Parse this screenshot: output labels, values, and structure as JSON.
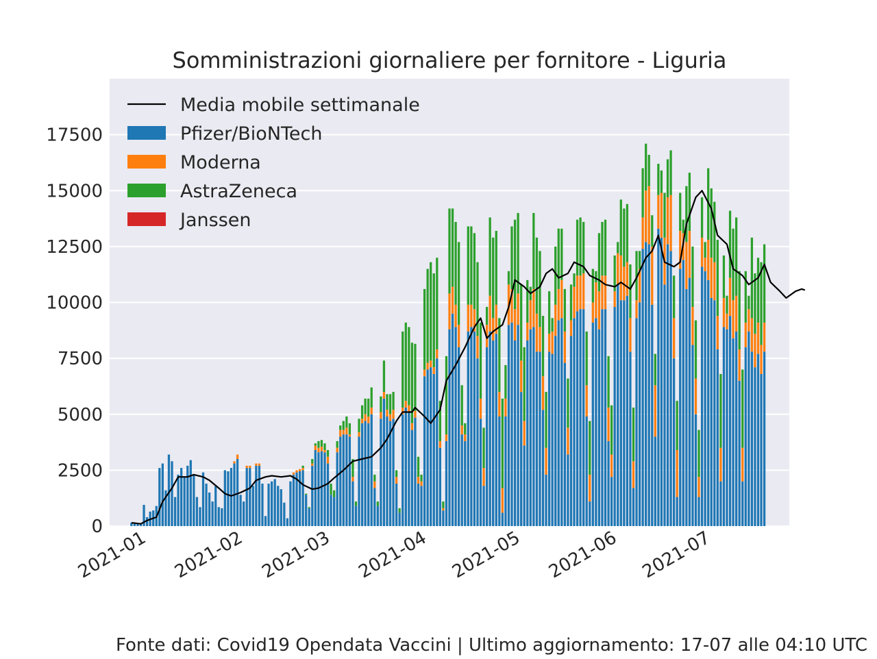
{
  "chart_data": {
    "type": "bar",
    "stacked": true,
    "title": "Somministrazioni giornaliere per fornitore - Liguria",
    "xlabel": "",
    "ylabel": "",
    "ylim": [
      0,
      20000
    ],
    "yticks": [
      0,
      2500,
      5000,
      7500,
      10000,
      12500,
      15000,
      17500
    ],
    "xlim": [
      "2020-12-20",
      "2021-07-26"
    ],
    "xticks": [
      {
        "date": "2021-01-01",
        "label": "2021-01"
      },
      {
        "date": "2021-02-01",
        "label": "2021-02"
      },
      {
        "date": "2021-03-01",
        "label": "2021-03"
      },
      {
        "date": "2021-04-01",
        "label": "2021-04"
      },
      {
        "date": "2021-05-01",
        "label": "2021-05"
      },
      {
        "date": "2021-06-01",
        "label": "2021-06"
      },
      {
        "date": "2021-07-01",
        "label": "2021-07"
      }
    ],
    "grid": true,
    "legend_position": "top-left",
    "date_start": "2020-12-27",
    "series": [
      {
        "name": "Pfizer/BioNTech",
        "color": "#1f77b4",
        "values": [
          150,
          100,
          100,
          100,
          950,
          400,
          650,
          700,
          900,
          2600,
          2800,
          1600,
          3200,
          2900,
          1300,
          2300,
          2600,
          2200,
          2700,
          2950,
          2300,
          1300,
          850,
          2400,
          1900,
          1500,
          1100,
          1800,
          850,
          800,
          2500,
          2450,
          2600,
          2800,
          3000,
          1400,
          1100,
          2600,
          2600,
          1800,
          2700,
          2700,
          1900,
          450,
          1900,
          2000,
          2100,
          1800,
          1650,
          1050,
          350,
          2000,
          2300,
          2400,
          2450,
          2500,
          1400,
          800,
          2700,
          3400,
          3300,
          3350,
          3300,
          2800,
          1400,
          1300,
          3300,
          4000,
          4100,
          4100,
          4000,
          2000,
          900,
          4000,
          4600,
          4700,
          4600,
          5000,
          1700,
          900,
          4800,
          5700,
          4900,
          4700,
          4800,
          1900,
          600,
          5000,
          5300,
          5100,
          4300,
          4850,
          1900,
          1800,
          6700,
          7000,
          7100,
          6800,
          7500,
          3500,
          700,
          3800,
          8800,
          9500,
          8900,
          8000,
          4100,
          3800,
          8700,
          8900,
          8700,
          7500,
          4800,
          1800,
          8000,
          8700,
          8300,
          8600,
          4900,
          600,
          4900,
          9000,
          9100,
          8300,
          9000,
          6000,
          3600,
          8300,
          8800,
          8900,
          7800,
          7800,
          5200,
          2300,
          7800,
          7700,
          8500,
          9200,
          9300,
          7300,
          3200,
          8500,
          9300,
          9600,
          9700,
          9700,
          4900,
          1100,
          9100,
          9300,
          8800,
          9700,
          9700,
          3800,
          2200,
          9800,
          10800,
          10100,
          10100,
          10300,
          7800,
          1700,
          9300,
          10000,
          12400,
          12700,
          12600,
          9900,
          4000,
          13300,
          12900,
          10800,
          12600,
          12300,
          7500,
          1300,
          11500,
          11900,
          10600,
          11100,
          8100,
          5000,
          1300,
          11600,
          11400,
          11000,
          10200,
          10100,
          7900,
          2000,
          8900,
          8800,
          9400,
          8400,
          8700,
          6500,
          2000,
          8000,
          8700,
          7800,
          7100,
          7700,
          6800,
          7800
        ]
      },
      {
        "name": "Moderna",
        "color": "#ff7f0e",
        "values": [
          0,
          0,
          0,
          0,
          0,
          0,
          0,
          0,
          0,
          0,
          0,
          0,
          0,
          0,
          0,
          0,
          0,
          0,
          0,
          0,
          0,
          0,
          0,
          0,
          0,
          0,
          0,
          0,
          0,
          0,
          0,
          0,
          0,
          100,
          200,
          0,
          0,
          100,
          100,
          0,
          100,
          100,
          0,
          0,
          0,
          0,
          0,
          0,
          0,
          0,
          0,
          0,
          100,
          100,
          100,
          100,
          0,
          0,
          100,
          200,
          200,
          200,
          100,
          300,
          0,
          0,
          200,
          300,
          200,
          300,
          100,
          200,
          0,
          200,
          200,
          300,
          300,
          300,
          300,
          0,
          300,
          300,
          300,
          300,
          400,
          300,
          0,
          300,
          300,
          300,
          300,
          300,
          300,
          200,
          300,
          300,
          300,
          300,
          400,
          300,
          100,
          300,
          1600,
          1200,
          1000,
          1000,
          400,
          300,
          1200,
          1000,
          1000,
          1000,
          900,
          800,
          1000,
          1600,
          1000,
          1300,
          1100,
          1100,
          800,
          1800,
          1500,
          1400,
          1400,
          1400,
          1100,
          800,
          1300,
          1700,
          1700,
          1100,
          1500,
          1200,
          800,
          1000,
          1400,
          1400,
          1700,
          1400,
          1200,
          700,
          1400,
          1600,
          1500,
          1600,
          1400,
          1200,
          900,
          1600,
          1700,
          1500,
          1500,
          1500,
          1000,
          700,
          1400,
          2000,
          1500,
          1500,
          1500,
          1200,
          800,
          1500,
          1400,
          2300,
          2600,
          2600,
          2300,
          1500,
          2000,
          2100,
          2100,
          2500,
          1800,
          2100,
          1700,
          1200,
          2100,
          2100,
          1700,
          1600,
          900,
          1300,
          600,
          1800,
          1800,
          1700,
          1500,
          1500,
          1300,
          700,
          1700,
          1700,
          1600,
          1400,
          1500,
          1100,
          1000,
          1500,
          1500,
          1400,
          1300,
          1300,
          900,
          800
        ]
      },
      {
        "name": "AstraZeneca",
        "color": "#2ca02c",
        "values": [
          0,
          0,
          0,
          0,
          0,
          0,
          0,
          0,
          0,
          0,
          0,
          0,
          0,
          0,
          0,
          0,
          0,
          0,
          0,
          0,
          0,
          0,
          0,
          0,
          0,
          0,
          0,
          0,
          0,
          0,
          0,
          0,
          0,
          0,
          0,
          0,
          0,
          0,
          0,
          0,
          0,
          0,
          0,
          0,
          0,
          0,
          0,
          0,
          0,
          0,
          0,
          0,
          0,
          0,
          0,
          100,
          50,
          50,
          200,
          100,
          300,
          300,
          300,
          300,
          500,
          300,
          300,
          200,
          400,
          500,
          500,
          800,
          200,
          600,
          600,
          700,
          800,
          900,
          300,
          200,
          700,
          1400,
          700,
          900,
          800,
          300,
          200,
          3400,
          3500,
          3500,
          3600,
          3000,
          900,
          300,
          3600,
          4200,
          4400,
          4200,
          4100,
          1800,
          300,
          3500,
          3800,
          3500,
          3700,
          3700,
          1800,
          500,
          3500,
          3500,
          3400,
          3300,
          3400,
          1800,
          800,
          3500,
          3600,
          3300,
          3300,
          4000,
          1500,
          600,
          2800,
          4000,
          3600,
          3400,
          3300,
          1900,
          600,
          3400,
          3400,
          3400,
          2700,
          2500,
          1900,
          600,
          2600,
          2700,
          2300,
          1900,
          2200,
          1600,
          600,
          2500,
          2600,
          2300,
          2400,
          2400,
          1500,
          500,
          2600,
          2400,
          2500,
          2300,
          2200,
          1600,
          500,
          2500,
          2600,
          2600,
          2400,
          2400,
          2200,
          800,
          2200,
          2100,
          1400,
          1400,
          1400,
          1400,
          1000,
          2000,
          1700,
          2000,
          1900,
          2200,
          1700,
          600,
          2500,
          2600,
          2700,
          2600,
          2100,
          1800,
          700,
          3200,
          3100,
          2700,
          3400,
          3300,
          1900,
          800,
          3000,
          3200,
          3500,
          3500,
          3500,
          2300,
          600,
          3600,
          2700,
          2900,
          3700,
          3500,
          1800,
          900
        ]
      },
      {
        "name": "Janssen",
        "color": "#d62728",
        "values": [
          0,
          0,
          0,
          0,
          0,
          0,
          0,
          0,
          0,
          0,
          0,
          0,
          0,
          0,
          0,
          0,
          0,
          0,
          0,
          0,
          0,
          0,
          0,
          0,
          0,
          0,
          0,
          0,
          0,
          0,
          0,
          0,
          0,
          0,
          0,
          0,
          0,
          0,
          0,
          0,
          0,
          0,
          0,
          0,
          0,
          0,
          0,
          0,
          0,
          0,
          0,
          0,
          0,
          0,
          0,
          0,
          0,
          0,
          0,
          0,
          0,
          0,
          0,
          0,
          0,
          0,
          0,
          0,
          0,
          0,
          0,
          0,
          0,
          0,
          0,
          0,
          0,
          0,
          0,
          0,
          0,
          0,
          0,
          0,
          0,
          0,
          0,
          0,
          0,
          0,
          0,
          0,
          0,
          0,
          0,
          0,
          0,
          0,
          0,
          0,
          0,
          0,
          0,
          0,
          0,
          0,
          0,
          0,
          0,
          0,
          0,
          0,
          0,
          0,
          0,
          0,
          0,
          0,
          0,
          0,
          0,
          0,
          0,
          0,
          0,
          0,
          0,
          0,
          0,
          0,
          0,
          0,
          0,
          0,
          0,
          0,
          0,
          0,
          0,
          0,
          0,
          0,
          0,
          0,
          0,
          0,
          0,
          0,
          0,
          0,
          0,
          0,
          0,
          0,
          0,
          0,
          0,
          0,
          0,
          0,
          0,
          0,
          0,
          0,
          0,
          0,
          0,
          0,
          0,
          0,
          0,
          0,
          0,
          0,
          0,
          0,
          0,
          0,
          0,
          0,
          0,
          0,
          0,
          0,
          0,
          0,
          0,
          0,
          0,
          0,
          0,
          0,
          0,
          0,
          0,
          0,
          0,
          0,
          0,
          0,
          0,
          0,
          0,
          0,
          0,
          0,
          0,
          0,
          0,
          0,
          0,
          0,
          0,
          0,
          0,
          0,
          0,
          0,
          0,
          0,
          0,
          0,
          0
        ]
      }
    ],
    "moving_average": {
      "name": "Media mobile settimanale",
      "color": "#000000",
      "points": [
        [
          "2020-12-27",
          150
        ],
        [
          "2020-12-30",
          100
        ],
        [
          "2021-01-01",
          250
        ],
        [
          "2021-01-04",
          400
        ],
        [
          "2021-01-06",
          1100
        ],
        [
          "2021-01-09",
          1700
        ],
        [
          "2021-01-11",
          2200
        ],
        [
          "2021-01-14",
          2200
        ],
        [
          "2021-01-16",
          2300
        ],
        [
          "2021-01-19",
          2200
        ],
        [
          "2021-01-21",
          2050
        ],
        [
          "2021-01-24",
          1700
        ],
        [
          "2021-01-26",
          1450
        ],
        [
          "2021-01-28",
          1350
        ],
        [
          "2021-01-31",
          1500
        ],
        [
          "2021-02-03",
          1700
        ],
        [
          "2021-02-05",
          2050
        ],
        [
          "2021-02-08",
          2200
        ],
        [
          "2021-02-10",
          2250
        ],
        [
          "2021-02-13",
          2200
        ],
        [
          "2021-02-16",
          2250
        ],
        [
          "2021-02-18",
          2100
        ],
        [
          "2021-02-20",
          1850
        ],
        [
          "2021-02-23",
          1650
        ],
        [
          "2021-02-25",
          1700
        ],
        [
          "2021-02-28",
          1900
        ],
        [
          "2021-03-02",
          2150
        ],
        [
          "2021-03-05",
          2500
        ],
        [
          "2021-03-08",
          2900
        ],
        [
          "2021-03-11",
          3000
        ],
        [
          "2021-03-14",
          3100
        ],
        [
          "2021-03-17",
          3500
        ],
        [
          "2021-03-19",
          3900
        ],
        [
          "2021-03-22",
          4700
        ],
        [
          "2021-03-24",
          5100
        ],
        [
          "2021-03-27",
          5100
        ],
        [
          "2021-03-28",
          5300
        ],
        [
          "2021-03-31",
          4900
        ],
        [
          "2021-04-02",
          4600
        ],
        [
          "2021-04-05",
          5200
        ],
        [
          "2021-04-07",
          6500
        ],
        [
          "2021-04-10",
          7200
        ],
        [
          "2021-04-13",
          8000
        ],
        [
          "2021-04-16",
          8900
        ],
        [
          "2021-04-18",
          9300
        ],
        [
          "2021-04-20",
          8400
        ],
        [
          "2021-04-22",
          8700
        ],
        [
          "2021-04-25",
          9000
        ],
        [
          "2021-04-27",
          9800
        ],
        [
          "2021-04-29",
          11000
        ],
        [
          "2021-05-02",
          10700
        ],
        [
          "2021-05-04",
          10400
        ],
        [
          "2021-05-07",
          10700
        ],
        [
          "2021-05-09",
          11300
        ],
        [
          "2021-05-11",
          11500
        ],
        [
          "2021-05-13",
          11100
        ],
        [
          "2021-05-16",
          11300
        ],
        [
          "2021-05-18",
          11800
        ],
        [
          "2021-05-21",
          11600
        ],
        [
          "2021-05-23",
          11200
        ],
        [
          "2021-05-26",
          11000
        ],
        [
          "2021-05-28",
          10800
        ],
        [
          "2021-05-31",
          10700
        ],
        [
          "2021-06-02",
          10900
        ],
        [
          "2021-06-05",
          10600
        ],
        [
          "2021-06-07",
          11100
        ],
        [
          "2021-06-10",
          12000
        ],
        [
          "2021-06-12",
          12300
        ],
        [
          "2021-06-14",
          13000
        ],
        [
          "2021-06-16",
          11800
        ],
        [
          "2021-06-19",
          11600
        ],
        [
          "2021-06-21",
          11800
        ],
        [
          "2021-06-23",
          13500
        ],
        [
          "2021-06-26",
          14700
        ],
        [
          "2021-06-28",
          15000
        ],
        [
          "2021-07-01",
          14200
        ],
        [
          "2021-07-03",
          13000
        ],
        [
          "2021-07-06",
          12600
        ],
        [
          "2021-07-08",
          11500
        ],
        [
          "2021-07-11",
          11200
        ],
        [
          "2021-07-13",
          10800
        ],
        [
          "2021-07-16",
          11100
        ],
        [
          "2021-07-18",
          11700
        ],
        [
          "2021-07-20",
          10900
        ],
        [
          "2021-07-23",
          10500
        ],
        [
          "2021-07-25",
          10200
        ],
        [
          "2021-07-28",
          10500
        ],
        [
          "2021-07-30",
          10600
        ],
        [
          "2021-07-31",
          10550
        ]
      ]
    },
    "footer": "Fonte dati: Covid19 Opendata Vaccini | Ultimo aggiornamento: 17-07 alle 04:10 UTC"
  }
}
